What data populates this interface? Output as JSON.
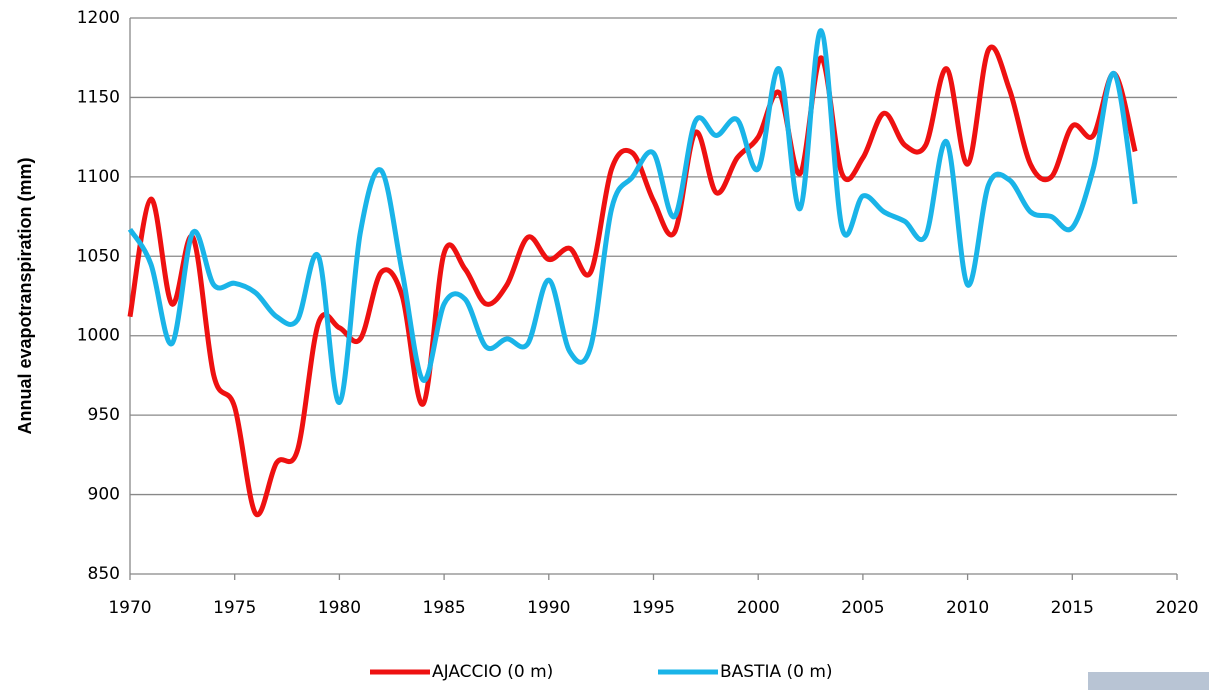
{
  "chart_data": {
    "type": "line",
    "y_label": "Annual evapotranspiration (mm)",
    "x": [
      1970,
      1971,
      1972,
      1973,
      1974,
      1975,
      1976,
      1977,
      1978,
      1979,
      1980,
      1981,
      1982,
      1983,
      1984,
      1985,
      1986,
      1987,
      1988,
      1989,
      1990,
      1991,
      1992,
      1993,
      1994,
      1995,
      1996,
      1997,
      1998,
      1999,
      2000,
      2001,
      2002,
      2003,
      2004,
      2005,
      2006,
      2007,
      2008,
      2009,
      2010,
      2011,
      2012,
      2013,
      2014,
      2015,
      2016,
      2017,
      2018
    ],
    "series": [
      {
        "name": "AJACCIO (0 m)",
        "color": "#ee1111",
        "values": [
          1012,
          1086,
          1020,
          1062,
          975,
          955,
          888,
          920,
          928,
          1008,
          1005,
          998,
          1040,
          1025,
          957,
          1052,
          1042,
          1020,
          1032,
          1062,
          1048,
          1055,
          1040,
          1105,
          1115,
          1085,
          1065,
          1128,
          1090,
          1112,
          1125,
          1153,
          1102,
          1175,
          1102,
          1112,
          1140,
          1120,
          1120,
          1168,
          1108,
          1180,
          1155,
          1108,
          1100,
          1132,
          1126,
          1165,
          1116
        ]
      },
      {
        "name": "BASTIA (0 m)",
        "color": "#1ab4e8",
        "values": [
          1067,
          1045,
          995,
          1065,
          1032,
          1033,
          1027,
          1012,
          1010,
          1050,
          958,
          1065,
          1104,
          1040,
          972,
          1020,
          1023,
          993,
          998,
          995,
          1035,
          990,
          993,
          1080,
          1100,
          1115,
          1075,
          1135,
          1126,
          1136,
          1105,
          1168,
          1080,
          1192,
          1068,
          1088,
          1078,
          1072,
          1063,
          1122,
          1032,
          1095,
          1098,
          1078,
          1075,
          1068,
          1105,
          1165,
          1083
        ]
      }
    ],
    "xlim": [
      1970,
      2020
    ],
    "xticks": [
      1970,
      1975,
      1980,
      1985,
      1990,
      1995,
      2000,
      2005,
      2010,
      2015,
      2020
    ],
    "ylim": [
      850,
      1200
    ],
    "yticks": [
      850,
      900,
      950,
      1000,
      1050,
      1100,
      1150,
      1200
    ],
    "grid": true,
    "legend": "bottom"
  }
}
